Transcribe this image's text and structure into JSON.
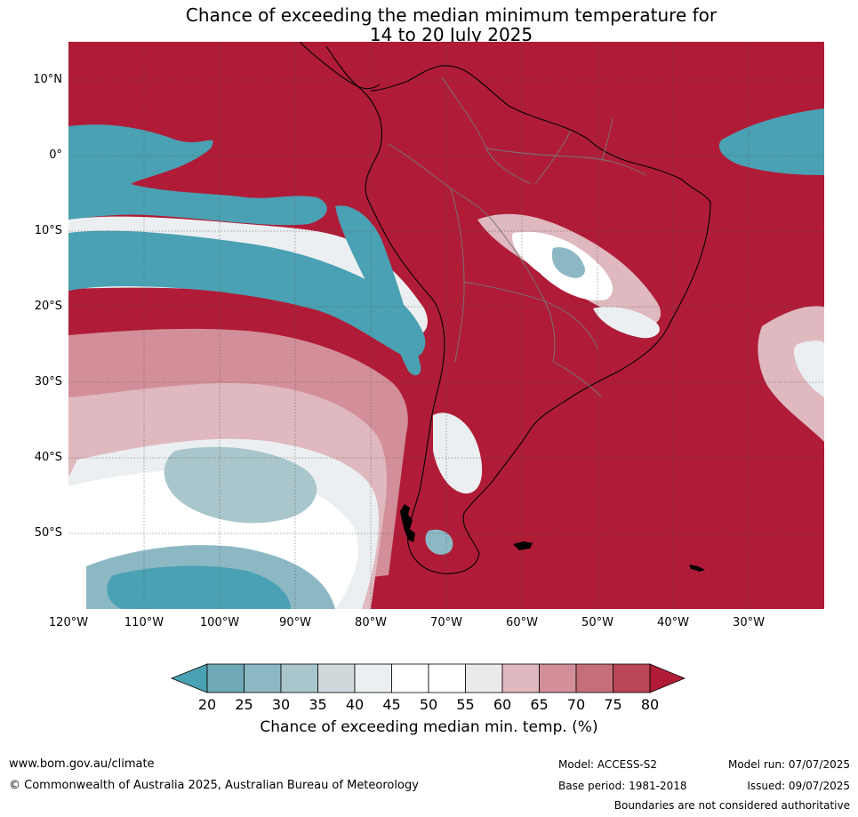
{
  "title": {
    "line1": "Chance of exceeding the median minimum temperature for",
    "line2": "14 to 20 July 2025"
  },
  "map": {
    "lat_labels": [
      "10°N",
      "0°",
      "10°S",
      "20°S",
      "30°S",
      "40°S",
      "50°S"
    ],
    "lon_labels": [
      "120°W",
      "110°W",
      "100°W",
      "90°W",
      "80°W",
      "70°W",
      "60°W",
      "50°W",
      "40°W",
      "30°W"
    ]
  },
  "colorbar": {
    "ticks": [
      "20",
      "25",
      "30",
      "35",
      "40",
      "45",
      "50",
      "55",
      "60",
      "65",
      "70",
      "75",
      "80"
    ],
    "colors": [
      "#4aa1b3",
      "#6ea9b5",
      "#8cb8c4",
      "#a9c6cc",
      "#cfd9dc",
      "#ebeff1",
      "#ffffff",
      "#ffffff",
      "#ebe9ea",
      "#e0b8bf",
      "#d38f99",
      "#c66f7b",
      "#bb4656",
      "#b01c37"
    ],
    "title": "Chance of exceeding median min. temp. (%)"
  },
  "footer": {
    "website": "www.bom.gov.au/climate",
    "copyright": "© Commonwealth of Australia 2025, Australian Bureau of Meteorology",
    "model": "Model: ACCESS-S2",
    "base_period": "Base period: 1981-2018",
    "model_run": "Model run: 07/07/2025",
    "issued": "Issued: 09/07/2025",
    "disclaimer": "Boundaries are not considered authoritative"
  }
}
